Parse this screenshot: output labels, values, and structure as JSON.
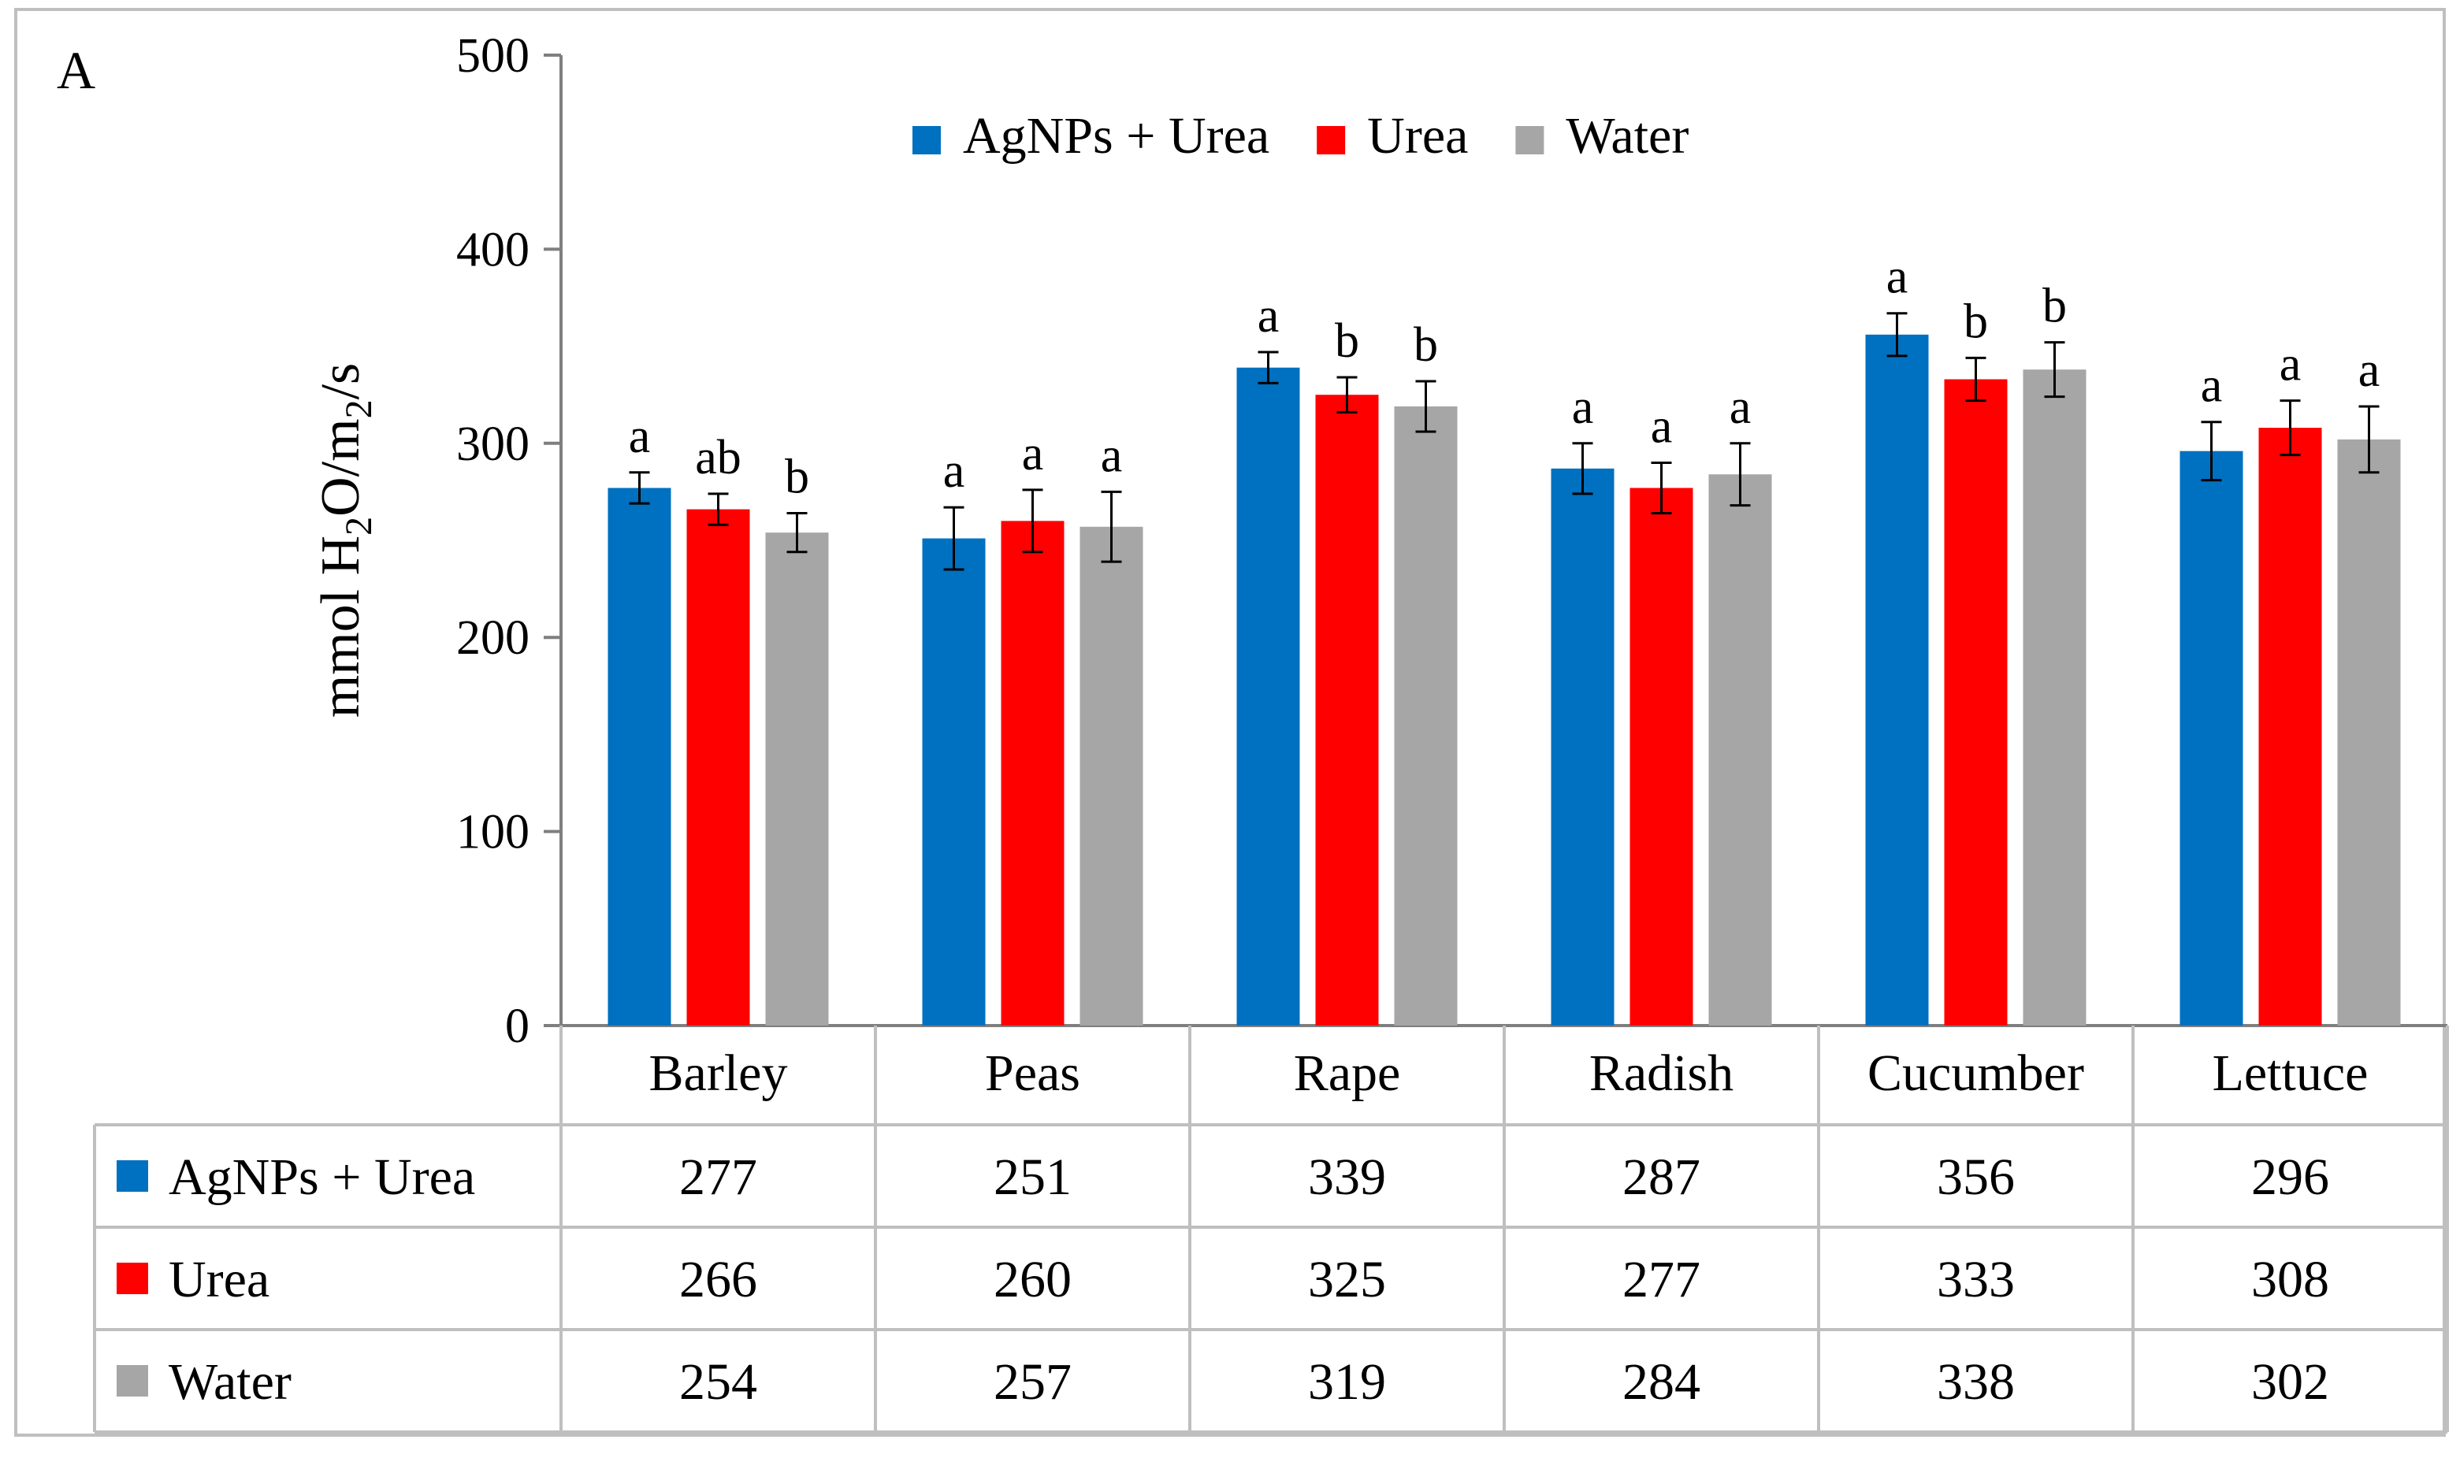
{
  "panel_label": "A",
  "colors": {
    "AgNPs + Urea": "#0070C0",
    "Urea": "#FF0000",
    "Water": "#A6A6A6",
    "axis": "#7F7F7F",
    "frame": "#BFBFBF"
  },
  "chart_data": {
    "type": "bar",
    "title": "",
    "xlabel": "",
    "ylabel": {
      "prefix": "mmol H",
      "sub1": "2",
      "mid": "O/m",
      "sub2": "2",
      "suffix": "/s"
    },
    "ylim": [
      0,
      500
    ],
    "yticks": [
      0,
      100,
      200,
      300,
      400,
      500
    ],
    "categories": [
      "Barley",
      "Peas",
      "Rape",
      "Radish",
      "Cucumber",
      "Lettuce"
    ],
    "legend_position": "top-center",
    "series": [
      {
        "name": "AgNPs + Urea",
        "values": [
          277,
          251,
          339,
          287,
          356,
          296
        ],
        "errors": [
          8,
          16,
          8,
          13,
          11,
          15
        ],
        "significance": [
          "a",
          "a",
          "a",
          "a",
          "a",
          "a"
        ]
      },
      {
        "name": "Urea",
        "values": [
          266,
          260,
          325,
          277,
          333,
          308
        ],
        "errors": [
          8,
          16,
          9,
          13,
          11,
          14
        ],
        "significance": [
          "ab",
          "a",
          "b",
          "a",
          "b",
          "a"
        ]
      },
      {
        "name": "Water",
        "values": [
          254,
          257,
          319,
          284,
          338,
          302
        ],
        "errors": [
          10,
          18,
          13,
          16,
          14,
          17
        ],
        "significance": [
          "b",
          "a",
          "b",
          "a",
          "b",
          "a"
        ]
      }
    ]
  }
}
